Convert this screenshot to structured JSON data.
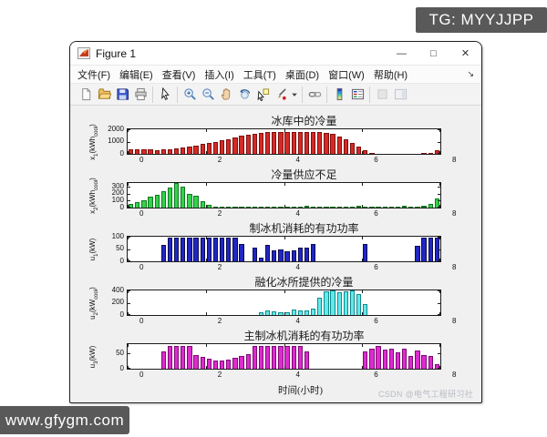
{
  "overlays": {
    "tg_badge": "TG: MYYJJPP",
    "site_badge": "www.gfygm.com",
    "csdn_watermark": "CSDN @电气工程研习社",
    "badge_bg": "#595959"
  },
  "window": {
    "title": "Figure 1",
    "controls": {
      "minimize": "—",
      "maximize": "□",
      "close": "✕"
    },
    "menu": [
      "文件(F)",
      "编辑(E)",
      "查看(V)",
      "插入(I)",
      "工具(T)",
      "桌面(D)",
      "窗口(W)",
      "帮助(H)"
    ],
    "menu_overflow": "↘",
    "toolbar_groups": [
      [
        "new-file",
        "open-folder",
        "save",
        "print"
      ],
      [
        "pointer"
      ],
      [
        "zoom-in",
        "zoom-out",
        "pan",
        "rotate-3d",
        "data-cursor",
        "brush",
        "brush-dropdown"
      ],
      [
        "link-plots"
      ],
      [
        "insert-colorbar",
        "insert-legend"
      ],
      [
        "hide-plot-tools",
        "show-plot-tools"
      ]
    ]
  },
  "chart_data": [
    {
      "type": "bar",
      "title": "冰库中的冷量",
      "ylabel": {
        "base": "x",
        "base_sub": "1",
        "unit": "kWh",
        "unit_sub": "cool"
      },
      "xlabel": "",
      "bar_color": "#d42a26",
      "bar_edge": "#7e100e",
      "ylim": [
        0,
        2000
      ],
      "yticks": [
        0,
        1000,
        2000
      ],
      "xlim": [
        0,
        8
      ],
      "xticks": [
        0,
        2,
        4,
        6,
        8
      ],
      "x_step_hours": 0.1667,
      "values": [
        400,
        380,
        360,
        340,
        330,
        340,
        380,
        440,
        520,
        600,
        690,
        780,
        880,
        990,
        1100,
        1220,
        1340,
        1460,
        1570,
        1660,
        1730,
        1780,
        1800,
        1810,
        1810,
        1800,
        1790,
        1780,
        1780,
        1790,
        1730,
        1600,
        1400,
        1150,
        870,
        560,
        260,
        60,
        0,
        0,
        0,
        0,
        0,
        0,
        0,
        30,
        100,
        290
      ]
    },
    {
      "type": "bar",
      "title": "冷量供应不足",
      "ylabel": {
        "base": "x",
        "base_sub": "2",
        "unit": "kWh",
        "unit_sub": "cool"
      },
      "xlabel": "",
      "bar_color": "#35d04a",
      "bar_edge": "#0d7a1f",
      "ylim": [
        0,
        355
      ],
      "yticks": [
        0,
        100,
        200,
        300
      ],
      "xlim": [
        0,
        8
      ],
      "xticks": [
        0,
        2,
        4,
        6,
        8
      ],
      "x_step_hours": 0.1667,
      "values": [
        55,
        75,
        110,
        160,
        190,
        240,
        295,
        350,
        300,
        195,
        165,
        90,
        35,
        12,
        10,
        8,
        10,
        8,
        10,
        8,
        10,
        8,
        10,
        12,
        10,
        15,
        18,
        20,
        10,
        8,
        10,
        8,
        10,
        8,
        10,
        22,
        15,
        10,
        12,
        10,
        15,
        12,
        20,
        10,
        15,
        25,
        55,
        125
      ]
    },
    {
      "type": "bar",
      "title": "制冰机消耗的有功功率",
      "ylabel": {
        "base": "u",
        "base_sub": "1",
        "unit": "kW",
        "unit_sub": ""
      },
      "xlabel": "",
      "bar_color": "#2126c4",
      "bar_edge": "#0a0c52",
      "ylim": [
        0,
        100
      ],
      "yticks": [
        0,
        50,
        100
      ],
      "xlim": [
        0,
        8
      ],
      "xticks": [
        0,
        2,
        4,
        6,
        8
      ],
      "x_step_hours": 0.1667,
      "values": [
        0,
        0,
        0,
        0,
        0,
        68,
        97,
        97,
        97,
        97,
        97,
        97,
        97,
        97,
        97,
        97,
        97,
        72,
        0,
        54,
        15,
        65,
        44,
        47,
        42,
        45,
        55,
        57,
        71,
        0,
        0,
        0,
        0,
        0,
        0,
        0,
        72,
        0,
        0,
        0,
        0,
        0,
        0,
        0,
        62,
        95,
        97,
        97
      ]
    },
    {
      "type": "bar",
      "title": "融化冰所提供的冷量",
      "ylabel": {
        "base": "u",
        "base_sub": "2",
        "unit": "kW",
        "unit_sub": "cool"
      },
      "xlabel": "",
      "bar_color": "#64e8ea",
      "bar_edge": "#0e8a8c",
      "ylim": [
        0,
        400
      ],
      "yticks": [
        0,
        200,
        400
      ],
      "xlim": [
        0,
        8
      ],
      "xticks": [
        0,
        2,
        4,
        6,
        8
      ],
      "x_step_hours": 0.1667,
      "values": [
        0,
        0,
        0,
        0,
        0,
        0,
        0,
        0,
        0,
        0,
        0,
        0,
        0,
        0,
        0,
        0,
        0,
        0,
        0,
        0,
        40,
        70,
        55,
        45,
        48,
        85,
        70,
        75,
        100,
        280,
        390,
        395,
        370,
        390,
        395,
        340,
        185,
        0,
        0,
        0,
        0,
        0,
        0,
        0,
        0,
        0,
        0,
        0
      ]
    },
    {
      "type": "bar",
      "title": "主制冰机消耗的有功功率",
      "ylabel": {
        "base": "u",
        "base_sub": "3",
        "unit": "kW",
        "unit_sub": ""
      },
      "xlabel": "时间(小时)",
      "bar_color": "#dd2bd0",
      "bar_edge": "#7c0a72",
      "ylim": [
        0,
        80
      ],
      "yticks": [
        0,
        50
      ],
      "xlim": [
        0,
        8
      ],
      "xticks": [
        0,
        2,
        4,
        6,
        8
      ],
      "x_step_hours": 0.1667,
      "values": [
        0,
        0,
        0,
        0,
        0,
        55,
        75,
        75,
        75,
        75,
        45,
        38,
        33,
        28,
        27,
        30,
        35,
        42,
        48,
        75,
        75,
        75,
        75,
        75,
        75,
        75,
        75,
        55,
        0,
        0,
        0,
        0,
        0,
        0,
        0,
        0,
        55,
        65,
        73,
        62,
        65,
        52,
        65,
        42,
        58,
        45,
        42,
        15
      ]
    }
  ]
}
